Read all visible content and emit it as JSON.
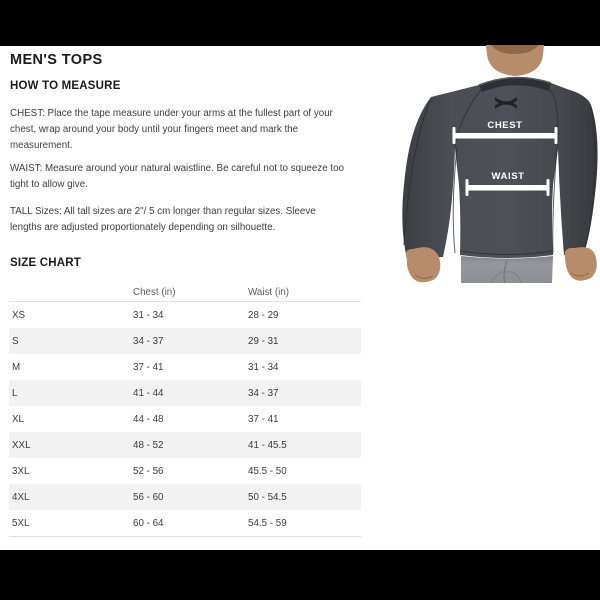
{
  "page": {
    "title": "MEN'S TOPS",
    "bar_color": "#000000",
    "background": "#ffffff"
  },
  "how_to_measure": {
    "heading": "HOW TO MEASURE",
    "paragraphs": [
      {
        "id": "chest",
        "lines": [
          "CHEST: Place the tape measure under your arms at the fullest part of your",
          "chest, wrap around your body until your fingers meet and mark the",
          "measurement."
        ]
      },
      {
        "id": "waist",
        "lines": [
          "WAIST: Measure around your natural waistline. Be careful not to squeeze too",
          "tight to allow give."
        ]
      },
      {
        "id": "tall",
        "lines": [
          "TALL Sizes: All tall sizes are 2\"/ 5 cm longer than regular sizes. Sleeve",
          "lengths are adjusted proportionately depending on silhouette."
        ]
      }
    ]
  },
  "size_chart": {
    "heading": "SIZE CHART",
    "columns": [
      "",
      "Chest (in)",
      "Waist (in)"
    ],
    "rows": [
      {
        "size": "XS",
        "chest": "31 - 34",
        "waist": "28 - 29"
      },
      {
        "size": "S",
        "chest": "34 - 37",
        "waist": "29 - 31"
      },
      {
        "size": "M",
        "chest": "37 - 41",
        "waist": "31 - 34"
      },
      {
        "size": "L",
        "chest": "41 - 44",
        "waist": "34 - 37"
      },
      {
        "size": "XL",
        "chest": "44 - 48",
        "waist": "37 - 41"
      },
      {
        "size": "XXL",
        "chest": "48 - 52",
        "waist": "41 - 45.5"
      },
      {
        "size": "3XL",
        "chest": "52 - 56",
        "waist": "45.5 - 50"
      },
      {
        "size": "4XL",
        "chest": "56 - 60",
        "waist": "50 - 54.5"
      },
      {
        "size": "5XL",
        "chest": "60 - 64",
        "waist": "54.5 - 59"
      }
    ]
  },
  "figure": {
    "chest_label": "CHEST",
    "waist_label": "WAIST",
    "marker_color": "#ffffff",
    "shirt_color": "#45484d",
    "shorts_color": "#909297",
    "skin_color": "#b78c6a"
  }
}
